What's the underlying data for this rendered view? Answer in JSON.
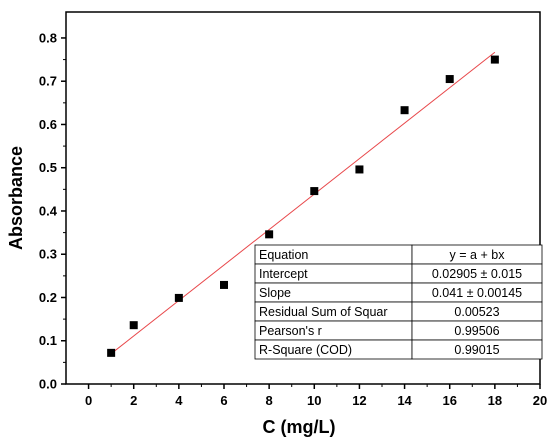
{
  "chart_data": {
    "type": "scatter",
    "title": "",
    "xlabel": "C (mg/L)",
    "ylabel": "Absorbance",
    "xlim": [
      -1,
      20
    ],
    "ylim": [
      0.0,
      0.86
    ],
    "x_ticks": [
      0,
      2,
      4,
      6,
      8,
      10,
      12,
      14,
      16,
      18,
      20
    ],
    "x_tick_labels": [
      "0",
      "2",
      "4",
      "6",
      "8",
      "10",
      "12",
      "14",
      "16",
      "18",
      "20"
    ],
    "y_ticks": [
      0.0,
      0.1,
      0.2,
      0.3,
      0.4,
      0.5,
      0.6,
      0.7,
      0.8
    ],
    "y_tick_labels": [
      "0.0",
      "0.1",
      "0.2",
      "0.3",
      "0.4",
      "0.5",
      "0.6",
      "0.7",
      "0.8"
    ],
    "grid": false,
    "series": [
      {
        "marker": "square",
        "color": "#000000",
        "x": [
          1,
          2,
          4,
          6,
          8,
          10,
          12,
          14,
          16,
          18
        ],
        "y": [
          0.072,
          0.136,
          0.199,
          0.229,
          0.346,
          0.446,
          0.496,
          0.633,
          0.705,
          0.75
        ]
      }
    ],
    "fit_line": {
      "color": "#e8474a",
      "intercept": 0.02905,
      "slope": 0.041,
      "x_range": [
        1,
        18
      ]
    },
    "stats_table": {
      "rows": [
        [
          "Equation",
          "y = a + bx"
        ],
        [
          "Intercept",
          "0.02905 ± 0.015"
        ],
        [
          "Slope",
          "0.041 ± 0.00145"
        ],
        [
          "Residual Sum of Squar",
          "0.00523"
        ],
        [
          "Pearson's r",
          "0.99506"
        ],
        [
          "R-Square (COD)",
          "0.99015"
        ]
      ]
    }
  }
}
